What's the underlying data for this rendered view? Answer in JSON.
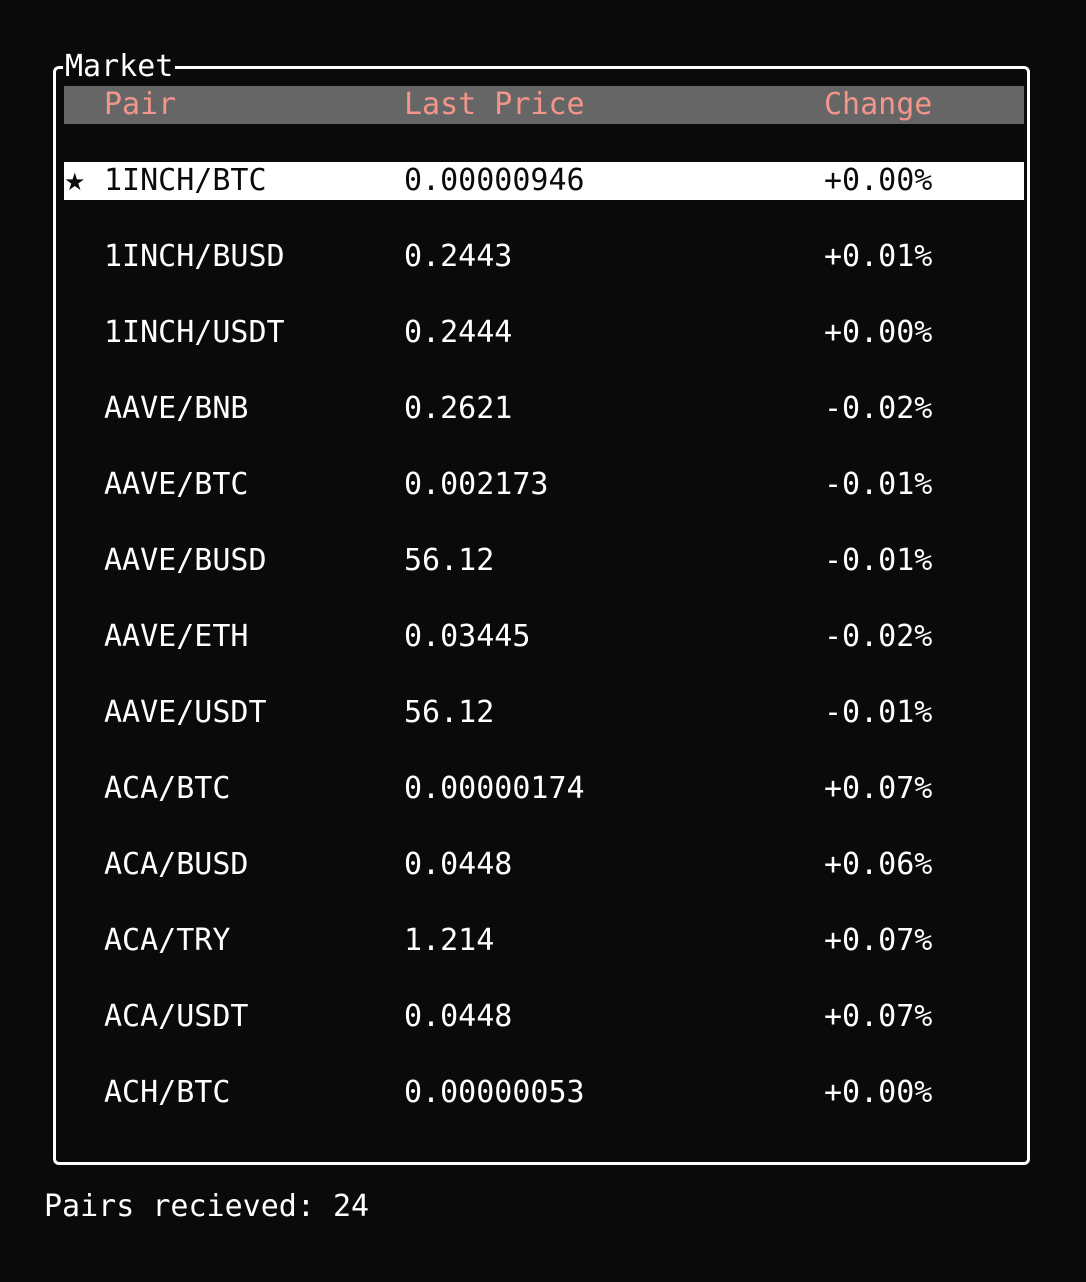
{
  "market": {
    "title": "Market",
    "columns": {
      "pair": "Pair",
      "last_price": "Last Price",
      "change": "Change"
    },
    "selected_marker": "★",
    "rows": [
      {
        "pair": "1INCH/BTC",
        "last_price": "0.00000946",
        "change": "+0.00%",
        "selected": true
      },
      {
        "pair": "1INCH/BUSD",
        "last_price": "0.2443",
        "change": "+0.01%",
        "selected": false
      },
      {
        "pair": "1INCH/USDT",
        "last_price": "0.2444",
        "change": "+0.00%",
        "selected": false
      },
      {
        "pair": "AAVE/BNB",
        "last_price": "0.2621",
        "change": "-0.02%",
        "selected": false
      },
      {
        "pair": "AAVE/BTC",
        "last_price": "0.002173",
        "change": "-0.01%",
        "selected": false
      },
      {
        "pair": "AAVE/BUSD",
        "last_price": "56.12",
        "change": "-0.01%",
        "selected": false
      },
      {
        "pair": "AAVE/ETH",
        "last_price": "0.03445",
        "change": "-0.02%",
        "selected": false
      },
      {
        "pair": "AAVE/USDT",
        "last_price": "56.12",
        "change": "-0.01%",
        "selected": false
      },
      {
        "pair": "ACA/BTC",
        "last_price": "0.00000174",
        "change": "+0.07%",
        "selected": false
      },
      {
        "pair": "ACA/BUSD",
        "last_price": "0.0448",
        "change": "+0.06%",
        "selected": false
      },
      {
        "pair": "ACA/TRY",
        "last_price": "1.214",
        "change": "+0.07%",
        "selected": false
      },
      {
        "pair": "ACA/USDT",
        "last_price": "0.0448",
        "change": "+0.07%",
        "selected": false
      },
      {
        "pair": "ACH/BTC",
        "last_price": "0.00000053",
        "change": "+0.00%",
        "selected": false
      }
    ]
  },
  "status": {
    "label": "Pairs recieved:",
    "count": "24"
  },
  "colors": {
    "background": "#0a0a0a",
    "header_bg": "#666666",
    "header_text": "#f2958a",
    "text": "#ffffff",
    "selected_bg": "#ffffff",
    "selected_text": "#0a0a0a"
  },
  "icons": {
    "selected_marker": "star-icon"
  }
}
